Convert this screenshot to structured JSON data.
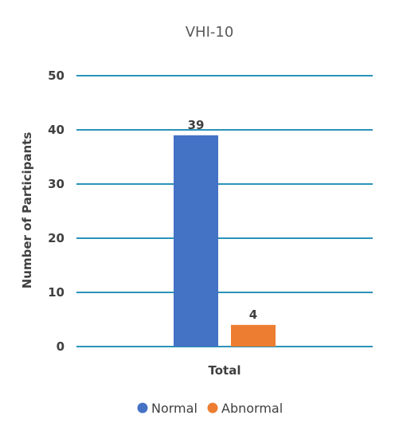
{
  "chart_data": {
    "type": "bar",
    "title": "VHI-10",
    "xlabel": "",
    "ylabel": "Number of Participants",
    "categories": [
      "Total"
    ],
    "series": [
      {
        "name": "Normal",
        "values": [
          39
        ],
        "color": "#4472C4"
      },
      {
        "name": "Abnormal",
        "values": [
          4
        ],
        "color": "#ED7D31"
      }
    ],
    "ylim": [
      0,
      50
    ],
    "yticks": [
      0,
      10,
      20,
      30,
      40,
      50
    ],
    "grid": true,
    "gridline_color": "#2A93B8",
    "legend_position": "bottom",
    "data_labels": true
  }
}
